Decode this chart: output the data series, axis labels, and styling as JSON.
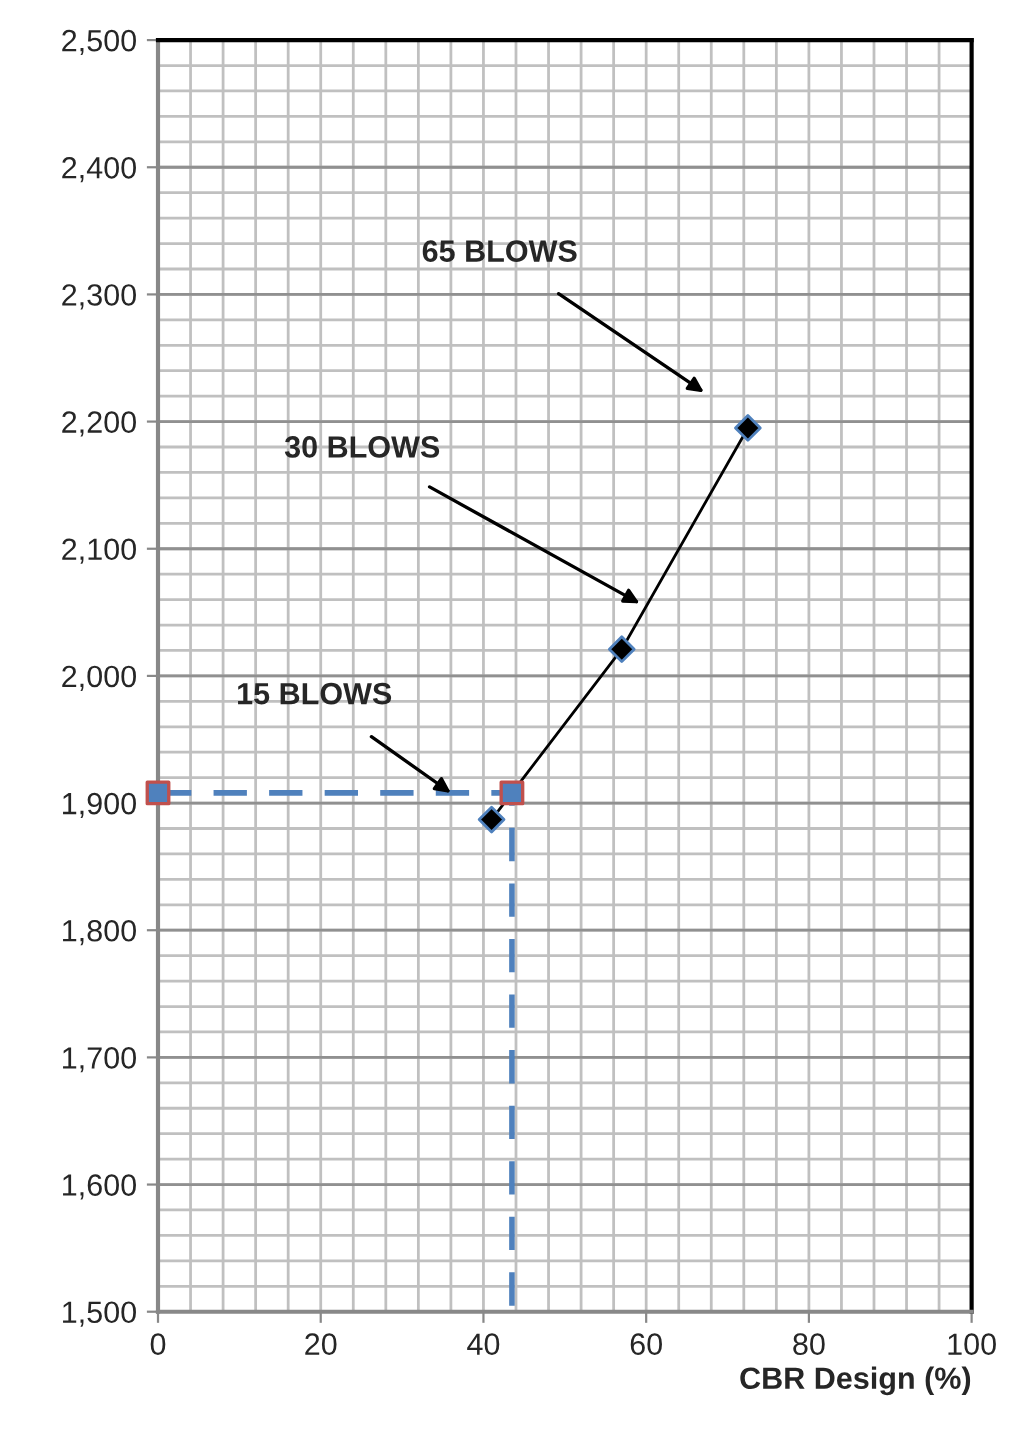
{
  "chart_data": {
    "type": "line",
    "xlabel": "CBR Design (%)",
    "xlim": [
      0,
      100
    ],
    "xticks": [
      0,
      20,
      40,
      60,
      80,
      100
    ],
    "ylim": [
      1500,
      2500
    ],
    "yticks": [
      {
        "value": 1500,
        "label": "1,500"
      },
      {
        "value": 1600,
        "label": "1,600"
      },
      {
        "value": 1700,
        "label": "1,700"
      },
      {
        "value": 1800,
        "label": "1,800"
      },
      {
        "value": 1900,
        "label": "1,900"
      },
      {
        "value": 2000,
        "label": "2,000"
      },
      {
        "value": 2100,
        "label": "2,100"
      },
      {
        "value": 2200,
        "label": "2,200"
      },
      {
        "value": 2300,
        "label": "2,300"
      },
      {
        "value": 2400,
        "label": "2,400"
      },
      {
        "value": 2500,
        "label": "2,500"
      }
    ],
    "grid": true,
    "series": [
      {
        "type": "line",
        "color": "#4f81bd",
        "line_style": "dashed",
        "marker": "none",
        "x": [
          0,
          43.5,
          43.5
        ],
        "values": [
          1908,
          1908,
          1500
        ]
      },
      {
        "color": "#000000",
        "line_style": "solid",
        "marker": "diamond",
        "x": [
          41,
          57,
          72.5
        ],
        "values": [
          1887,
          2021,
          2195
        ]
      },
      {
        "type": "scatter",
        "color": "#c0504d",
        "marker": "square",
        "x": [
          0,
          43.5
        ],
        "values": [
          1908,
          1908
        ]
      }
    ],
    "annotations": [
      {
        "text": "15 BLOWS",
        "x": 36,
        "y": 1908
      },
      "30 BLOWS",
      "65 BLOWS"
    ]
  }
}
